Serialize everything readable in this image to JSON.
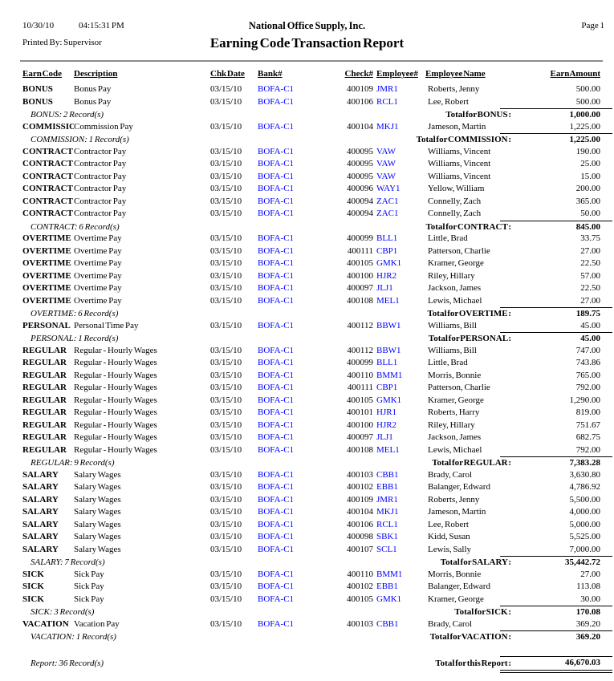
{
  "colors": {
    "link": "#0000ff",
    "rule": "#8c8c8c",
    "text": "#000000"
  },
  "header": {
    "date": "10/30/10",
    "time": "04:15:31 PM",
    "company": "National Office Supply, Inc.",
    "page": "Page 1",
    "printed_by": "Printed By: Supervisor",
    "title": "Earning Code Transaction Report"
  },
  "columns": [
    "Earn Code",
    "Description",
    "Chk Date",
    "Bank#",
    "Check#",
    "Employee#",
    "Employee Name",
    "Earn Amount"
  ],
  "groups": [
    {
      "code": "BONUS",
      "description": "Bonus Pay",
      "chk_date": "03/15/10",
      "bank": "BOFA-C1",
      "rows": [
        {
          "check": "400109",
          "employee": "JMR1",
          "name": "Roberts, Jenny",
          "amount": "500.00"
        },
        {
          "check": "400106",
          "employee": "RCL1",
          "name": "Lee, Robert",
          "amount": "500.00"
        }
      ],
      "count": "BONUS: 2 Record(s)",
      "total_label": "Total for BONUS :",
      "total": "1,000.00"
    },
    {
      "code": "COMMISSION",
      "description": "Commission Pay",
      "chk_date": "03/15/10",
      "bank": "BOFA-C1",
      "rows": [
        {
          "check": "400104",
          "employee": "MKJ1",
          "name": "Jameson, Martin",
          "amount": "1,225.00"
        }
      ],
      "count": "COMMISSION: 1 Record(s)",
      "total_label": "Total for COMMISSION :",
      "total": "1,225.00"
    },
    {
      "code": "CONTRACT",
      "description": "Contractor Pay",
      "chk_date": "03/15/10",
      "bank": "BOFA-C1",
      "rows": [
        {
          "check": "400095",
          "employee": "VAW",
          "name": "Williams, Vincent",
          "amount": "190.00"
        },
        {
          "check": "400095",
          "employee": "VAW",
          "name": "Williams, Vincent",
          "amount": "25.00"
        },
        {
          "check": "400095",
          "employee": "VAW",
          "name": "Williams, Vincent",
          "amount": "15.00"
        },
        {
          "check": "400096",
          "employee": "WAY1",
          "name": "Yellow, William",
          "amount": "200.00"
        },
        {
          "check": "400094",
          "employee": "ZAC1",
          "name": "Connelly, Zach",
          "amount": "365.00"
        },
        {
          "check": "400094",
          "employee": "ZAC1",
          "name": "Connelly, Zach",
          "amount": "50.00"
        }
      ],
      "count": "CONTRACT: 6 Record(s)",
      "total_label": "Total for CONTRACT :",
      "total": "845.00"
    },
    {
      "code": "OVERTIME",
      "description": "Overtime Pay",
      "chk_date": "03/15/10",
      "bank": "BOFA-C1",
      "rows": [
        {
          "check": "400099",
          "employee": "BLL1",
          "name": "Little, Brad",
          "amount": "33.75"
        },
        {
          "check": "400111",
          "employee": "CBP1",
          "name": "Patterson, Charlie",
          "amount": "27.00"
        },
        {
          "check": "400105",
          "employee": "GMK1",
          "name": "Kramer, George",
          "amount": "22.50"
        },
        {
          "check": "400100",
          "employee": "HJR2",
          "name": "Riley, Hillary",
          "amount": "57.00"
        },
        {
          "check": "400097",
          "employee": "JLJ1",
          "name": "Jackson, James",
          "amount": "22.50"
        },
        {
          "check": "400108",
          "employee": "MEL1",
          "name": "Lewis, Michael",
          "amount": "27.00"
        }
      ],
      "count": "OVERTIME: 6 Record(s)",
      "total_label": "Total for OVERTIME :",
      "total": "189.75"
    },
    {
      "code": "PERSONAL",
      "description": "Personal Time Pay",
      "chk_date": "03/15/10",
      "bank": "BOFA-C1",
      "rows": [
        {
          "check": "400112",
          "employee": "BBW1",
          "name": "Williams, Bill",
          "amount": "45.00"
        }
      ],
      "count": "PERSONAL: 1 Record(s)",
      "total_label": "Total for PERSONAL :",
      "total": "45.00"
    },
    {
      "code": "REGULAR",
      "description": "Regular - Hourly Wages",
      "chk_date": "03/15/10",
      "bank": "BOFA-C1",
      "rows": [
        {
          "check": "400112",
          "employee": "BBW1",
          "name": "Williams, Bill",
          "amount": "747.00"
        },
        {
          "check": "400099",
          "employee": "BLL1",
          "name": "Little, Brad",
          "amount": "743.86"
        },
        {
          "check": "400110",
          "employee": "BMM1",
          "name": "Morris, Bonnie",
          "amount": "765.00"
        },
        {
          "check": "400111",
          "employee": "CBP1",
          "name": "Patterson, Charlie",
          "amount": "792.00"
        },
        {
          "check": "400105",
          "employee": "GMK1",
          "name": "Kramer, George",
          "amount": "1,290.00"
        },
        {
          "check": "400101",
          "employee": "HJR1",
          "name": "Roberts, Harry",
          "amount": "819.00"
        },
        {
          "check": "400100",
          "employee": "HJR2",
          "name": "Riley, Hillary",
          "amount": "751.67"
        },
        {
          "check": "400097",
          "employee": "JLJ1",
          "name": "Jackson, James",
          "amount": "682.75"
        },
        {
          "check": "400108",
          "employee": "MEL1",
          "name": "Lewis, Michael",
          "amount": "792.00"
        }
      ],
      "count": "REGULAR: 9 Record(s)",
      "total_label": "Total for REGULAR :",
      "total": "7,383.28"
    },
    {
      "code": "SALARY",
      "description": "Salary Wages",
      "chk_date": "03/15/10",
      "bank": "BOFA-C1",
      "rows": [
        {
          "check": "400103",
          "employee": "CBB1",
          "name": "Brady, Carol",
          "amount": "3,630.80"
        },
        {
          "check": "400102",
          "employee": "EBB1",
          "name": "Balanger, Edward",
          "amount": "4,786.92"
        },
        {
          "check": "400109",
          "employee": "JMR1",
          "name": "Roberts, Jenny",
          "amount": "5,500.00"
        },
        {
          "check": "400104",
          "employee": "MKJ1",
          "name": "Jameson, Martin",
          "amount": "4,000.00"
        },
        {
          "check": "400106",
          "employee": "RCL1",
          "name": "Lee, Robert",
          "amount": "5,000.00"
        },
        {
          "check": "400098",
          "employee": "SBK1",
          "name": "Kidd, Susan",
          "amount": "5,525.00"
        },
        {
          "check": "400107",
          "employee": "SCL1",
          "name": "Lewis, Sally",
          "amount": "7,000.00"
        }
      ],
      "count": "SALARY: 7 Record(s)",
      "total_label": "Total for SALARY :",
      "total": "35,442.72"
    },
    {
      "code": "SICK",
      "description": "Sick Pay",
      "chk_date": "03/15/10",
      "bank": "BOFA-C1",
      "rows": [
        {
          "check": "400110",
          "employee": "BMM1",
          "name": "Morris, Bonnie",
          "amount": "27.00"
        },
        {
          "check": "400102",
          "employee": "EBB1",
          "name": "Balanger, Edward",
          "amount": "113.08"
        },
        {
          "check": "400105",
          "employee": "GMK1",
          "name": "Kramer, George",
          "amount": "30.00"
        }
      ],
      "count": "SICK: 3 Record(s)",
      "total_label": "Total for SICK :",
      "total": "170.08"
    },
    {
      "code": "VACATION",
      "description": "Vacation Pay",
      "chk_date": "03/15/10",
      "bank": "BOFA-C1",
      "rows": [
        {
          "check": "400103",
          "employee": "CBB1",
          "name": "Brady, Carol",
          "amount": "369.20"
        }
      ],
      "count": "VACATION: 1 Record(s)",
      "total_label": "Total for VACATION :",
      "total": "369.20"
    }
  ],
  "footer": {
    "count": "Report: 36 Record(s)",
    "label": "Total for this Report :",
    "amount": "46,670.03"
  }
}
